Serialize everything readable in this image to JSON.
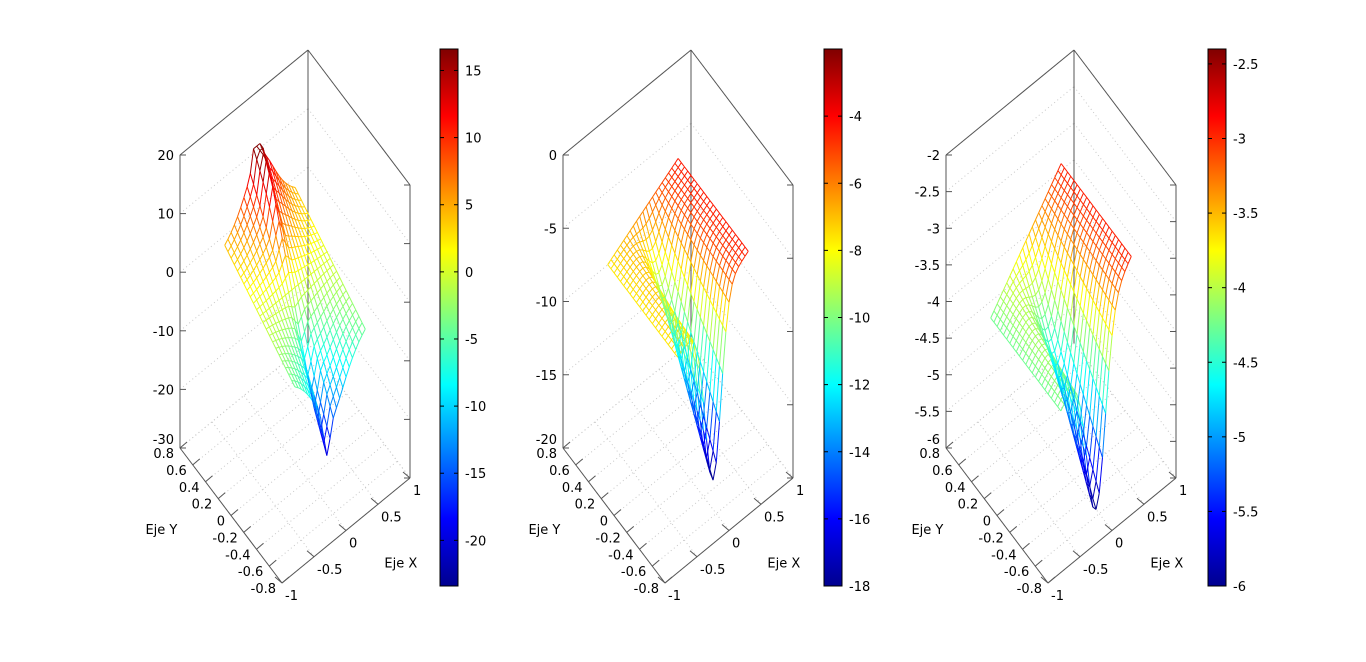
{
  "chart_data": [
    {
      "type": "surface",
      "xlabel": "Eje X",
      "ylabel": "Eje Y",
      "xlim": [
        -1,
        1
      ],
      "ylim": [
        -0.8,
        0.8
      ],
      "xticks": [
        "-1",
        "-0.5",
        "0",
        "0.5",
        "1"
      ],
      "yticks": [
        "0.8",
        "0.6",
        "0.4",
        "0.2",
        "0",
        "-0.2",
        "-0.4",
        "-0.6",
        "-0.8"
      ],
      "zlim": [
        -30,
        20
      ],
      "zticks": [
        "20",
        "10",
        "0",
        "-10",
        "-20",
        "-30"
      ],
      "colorbar": {
        "range": [
          -23.4,
          16.6
        ],
        "ticks": [
          "15",
          "10",
          "5",
          "0",
          "-5",
          "-10",
          "-15",
          "-20"
        ]
      },
      "colormap": "jet"
    },
    {
      "type": "surface",
      "xlabel": "Eje X",
      "ylabel": "Eje Y",
      "xlim": [
        -1,
        1
      ],
      "ylim": [
        -0.8,
        0.8
      ],
      "xticks": [
        "-1",
        "-0.5",
        "0",
        "0.5",
        "1"
      ],
      "yticks": [
        "0.8",
        "0.6",
        "0.4",
        "0.2",
        "0",
        "-0.2",
        "-0.4",
        "-0.6",
        "-0.8"
      ],
      "zlim": [
        -20,
        0
      ],
      "zticks": [
        "0",
        "-5",
        "-10",
        "-15",
        "-20"
      ],
      "colorbar": {
        "range": [
          -18,
          -2
        ],
        "ticks": [
          "-4",
          "-6",
          "-8",
          "-10",
          "-12",
          "-14",
          "-16",
          "-18"
        ]
      },
      "colormap": "jet"
    },
    {
      "type": "surface",
      "xlabel": "Eje X",
      "ylabel": "Eje Y",
      "xlim": [
        -1,
        1
      ],
      "ylim": [
        -0.8,
        0.8
      ],
      "xticks": [
        "-1",
        "-0.5",
        "0",
        "0.5",
        "1"
      ],
      "yticks": [
        "0.8",
        "0.6",
        "0.4",
        "0.2",
        "0",
        "-0.2",
        "-0.4",
        "-0.6",
        "-0.8"
      ],
      "zlim": [
        -6,
        -2
      ],
      "zticks": [
        "-2",
        "-2.5",
        "-3",
        "-3.5",
        "-4",
        "-4.5",
        "-5",
        "-5.5",
        "-6"
      ],
      "colorbar": {
        "range": [
          -6,
          -2.4
        ],
        "ticks": [
          "-2.5",
          "-3",
          "-3.5",
          "-4",
          "-4.5",
          "-5",
          "-5.5",
          "-6"
        ]
      },
      "colormap": "jet"
    }
  ]
}
